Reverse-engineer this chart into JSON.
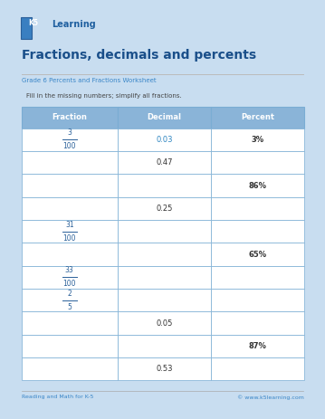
{
  "title": "Fractions, decimals and percents",
  "subtitle": "Grade 6 Percents and Fractions Worksheet",
  "instruction": "Fill in the missing numbers; simplify all fractions.",
  "col_headers": [
    "Fraction",
    "Decimal",
    "Percent"
  ],
  "rows": [
    {
      "fraction": [
        "3",
        "100"
      ],
      "decimal": "0.03",
      "percent": "3%",
      "decimal_blue": true
    },
    {
      "fraction": null,
      "decimal": "0.47",
      "percent": null
    },
    {
      "fraction": null,
      "decimal": null,
      "percent": "86%"
    },
    {
      "fraction": null,
      "decimal": "0.25",
      "percent": null
    },
    {
      "fraction": [
        "31",
        "100"
      ],
      "decimal": null,
      "percent": null
    },
    {
      "fraction": null,
      "decimal": null,
      "percent": "65%"
    },
    {
      "fraction": [
        "33",
        "100"
      ],
      "decimal": null,
      "percent": null
    },
    {
      "fraction": [
        "2",
        "5"
      ],
      "decimal": null,
      "percent": null
    },
    {
      "fraction": null,
      "decimal": "0.05",
      "percent": null
    },
    {
      "fraction": null,
      "decimal": null,
      "percent": "87%"
    },
    {
      "fraction": null,
      "decimal": "0.53",
      "percent": null
    }
  ],
  "header_bg": "#8ab4d8",
  "border_color": "#7aadd4",
  "title_color": "#1a4f8a",
  "subtitle_color": "#3a86c8",
  "instruction_color": "#444444",
  "fraction_color": "#2a6099",
  "decimal_blue_color": "#2e86c1",
  "decimal_default_color": "#333333",
  "percent_color": "#333333",
  "footer_left": "Reading and Math for K-5",
  "footer_right": "© www.k5learning.com",
  "footer_color": "#3a86c8",
  "bg_color": "#c8ddf0",
  "page_bg": "#ffffff",
  "logo_box_color": "#3a7fc1",
  "logo_text_color": "#2060a0"
}
